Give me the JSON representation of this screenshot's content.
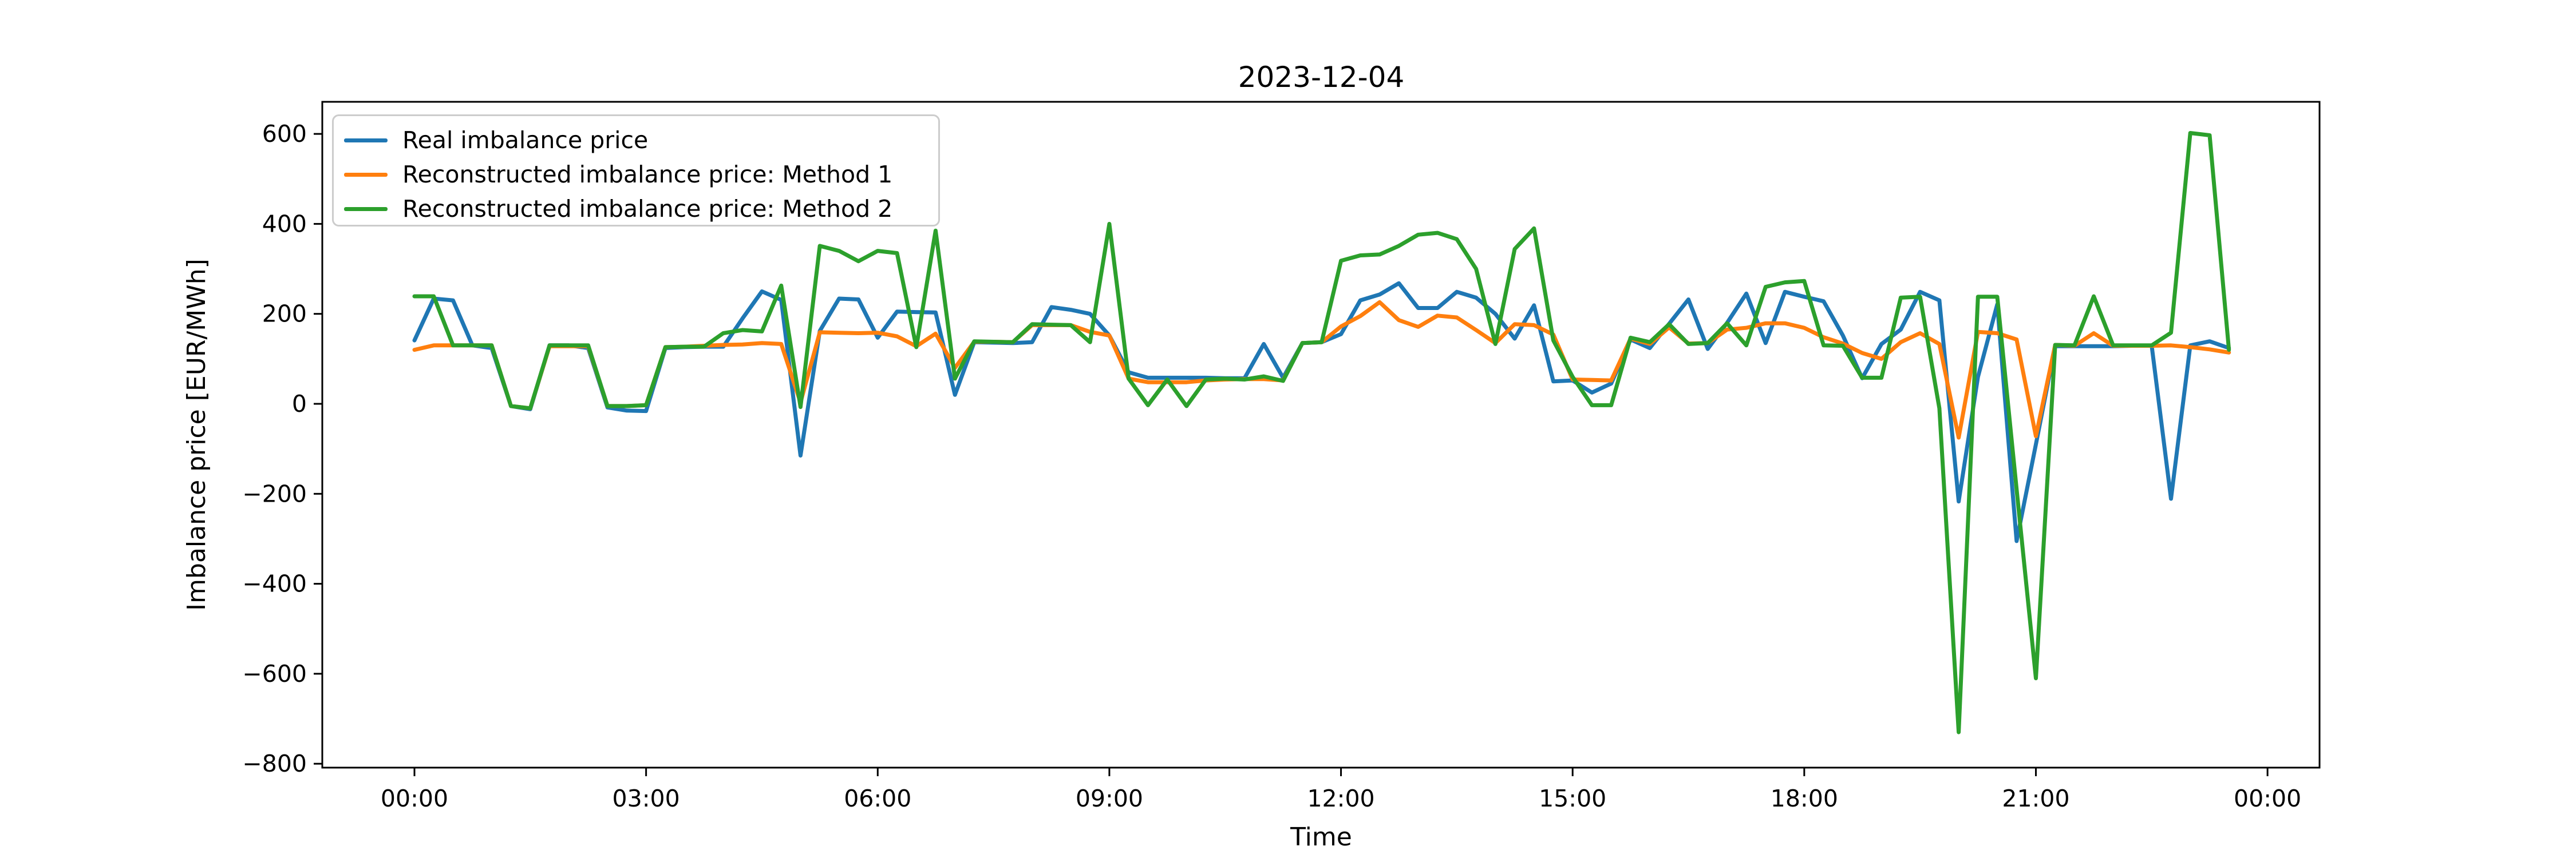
{
  "figure": {
    "background": "#ffffff"
  },
  "chart_data": {
    "type": "line",
    "title": "2023-12-04",
    "xlabel": "Time",
    "ylabel": "Imbalance price [EUR/MWh]",
    "grid": false,
    "legend_position": "upper left",
    "x_start": "00:00",
    "x_step_minutes": 15,
    "x_tick_labels": [
      "00:00",
      "03:00",
      "06:00",
      "09:00",
      "12:00",
      "15:00",
      "18:00",
      "21:00",
      "00:00"
    ],
    "x_tick_indices": [
      0,
      12,
      24,
      36,
      48,
      60,
      72,
      84,
      96
    ],
    "y_ticks": [
      600,
      400,
      200,
      0,
      -200,
      -400,
      -600,
      -800
    ],
    "ylim": [
      -815,
      670
    ],
    "series": [
      {
        "name": "Real imbalance price",
        "color": "#1f77b4",
        "values": [
          141,
          234,
          230,
          130,
          124,
          -5,
          -12,
          130,
          130,
          124,
          -8,
          -15,
          -16,
          124,
          126,
          127,
          127,
          190,
          250,
          231,
          -115,
          162,
          234,
          232,
          147,
          205,
          204,
          203,
          20,
          137,
          136,
          135,
          137,
          215,
          209,
          200,
          152,
          70,
          58,
          58,
          58,
          58,
          57,
          57,
          133,
          58,
          135,
          137,
          155,
          230,
          243,
          268,
          213,
          213,
          249,
          236,
          200,
          145,
          219,
          50,
          52,
          25,
          45,
          143,
          124,
          178,
          232,
          122,
          180,
          245,
          135,
          249,
          238,
          228,
          152,
          57,
          133,
          165,
          249,
          230,
          -217,
          60,
          221,
          -305,
          -90,
          128,
          128,
          128,
          128,
          129,
          129,
          -211,
          130,
          139,
          124
        ]
      },
      {
        "name": "Reconstructed imbalance price: Method 1",
        "color": "#ff7f0e",
        "values": [
          120,
          130,
          130,
          130,
          130,
          -5,
          -10,
          128,
          128,
          128,
          -5,
          -5,
          -3,
          126,
          127,
          129,
          131,
          132,
          135,
          133,
          3,
          159,
          158,
          157,
          158,
          150,
          128,
          156,
          80,
          138,
          138,
          137,
          175,
          175,
          175,
          160,
          152,
          56,
          48,
          48,
          48,
          52,
          54,
          55,
          55,
          52,
          135,
          137,
          172,
          195,
          226,
          186,
          171,
          196,
          192,
          164,
          135,
          177,
          175,
          154,
          54,
          53,
          52,
          145,
          133,
          170,
          134,
          135,
          165,
          169,
          179,
          179,
          169,
          148,
          134,
          113,
          100,
          137,
          157,
          133,
          -75,
          160,
          157,
          143,
          -72,
          131,
          129,
          157,
          129,
          129,
          129,
          130,
          126,
          121,
          114
        ]
      },
      {
        "name": "Reconstructed imbalance price: Method 2",
        "color": "#2ca02c",
        "values": [
          239,
          239,
          130,
          130,
          130,
          -5,
          -10,
          130,
          130,
          130,
          -5,
          -5,
          -3,
          126,
          127,
          127,
          157,
          164,
          161,
          263,
          -7,
          351,
          340,
          317,
          340,
          335,
          126,
          385,
          56,
          139,
          138,
          137,
          177,
          176,
          175,
          137,
          400,
          56,
          -3,
          54,
          -5,
          54,
          56,
          54,
          61,
          51,
          135,
          137,
          318,
          330,
          332,
          351,
          376,
          380,
          366,
          300,
          133,
          344,
          390,
          141,
          60,
          -3,
          -3,
          147,
          137,
          177,
          133,
          135,
          179,
          130,
          260,
          270,
          273,
          130,
          129,
          58,
          58,
          236,
          238,
          -10,
          -730,
          238,
          238,
          -190,
          -610,
          131,
          130,
          239,
          130,
          130,
          130,
          158,
          602,
          597,
          120
        ]
      }
    ]
  }
}
